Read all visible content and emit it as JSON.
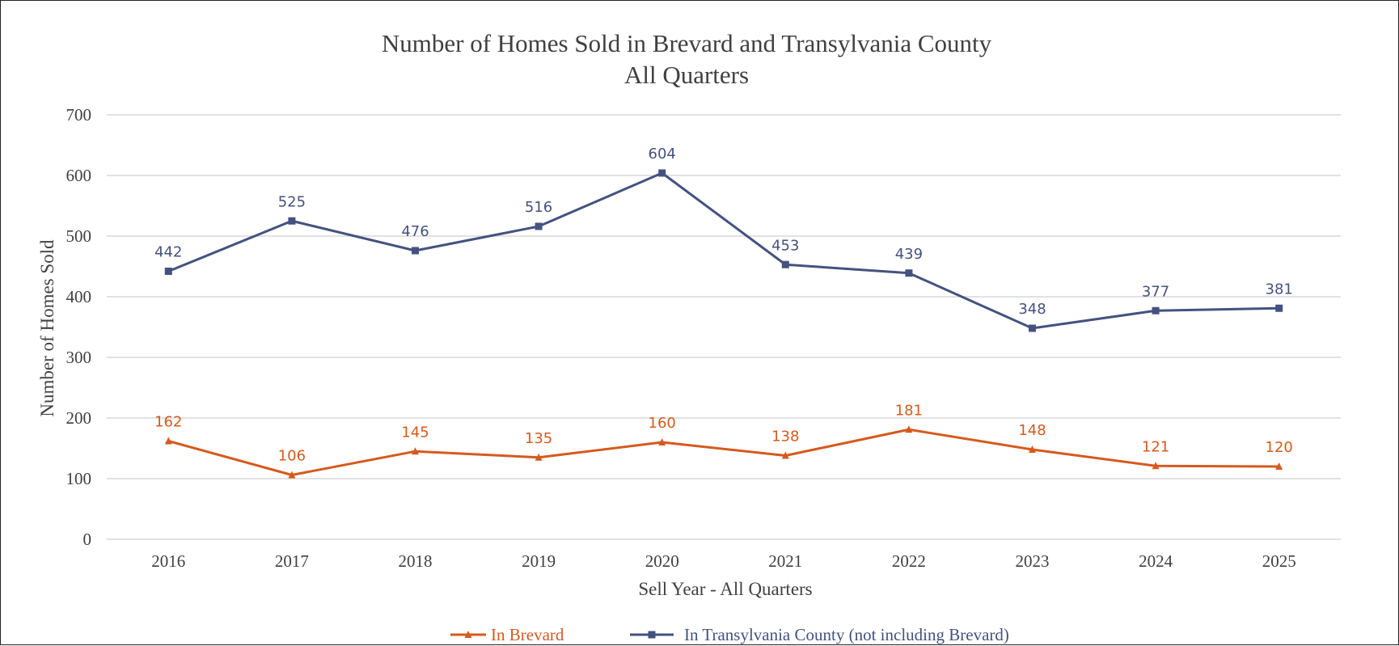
{
  "chart_data": {
    "type": "line",
    "title": "Number of Homes Sold in Brevard and Transylvania County",
    "subtitle": "All Quarters",
    "xlabel": "Sell Year - All Quarters",
    "ylabel": "Number of Homes Sold",
    "categories": [
      "2016",
      "2017",
      "2018",
      "2019",
      "2020",
      "2021",
      "2022",
      "2023",
      "2024",
      "2025"
    ],
    "ylim": [
      0,
      700
    ],
    "yticks": [
      0,
      100,
      200,
      300,
      400,
      500,
      600,
      700
    ],
    "grid": true,
    "legend_position": "bottom",
    "series": [
      {
        "name": "In Brevard",
        "marker": "triangle",
        "color": "#D55A1E",
        "values": [
          162,
          106,
          145,
          135,
          160,
          138,
          181,
          148,
          121,
          120
        ]
      },
      {
        "name": "In Transylvania County (not including Brevard)",
        "marker": "square",
        "color": "#44527F",
        "values": [
          442,
          525,
          476,
          516,
          604,
          453,
          439,
          348,
          377,
          381
        ]
      }
    ]
  }
}
